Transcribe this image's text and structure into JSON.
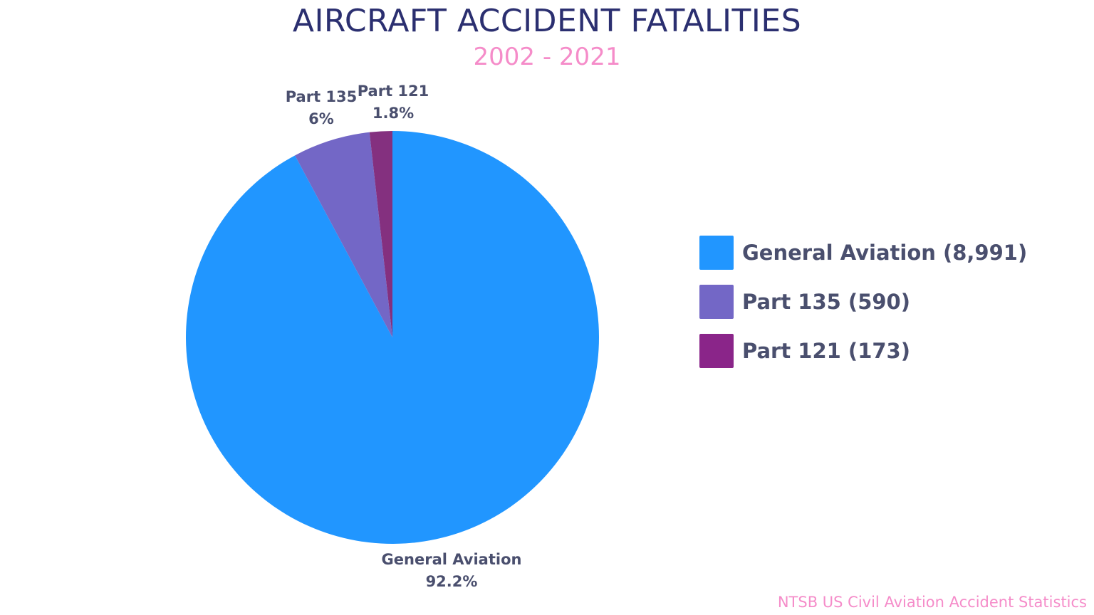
{
  "chart_data": {
    "type": "pie",
    "title": "AIRCRAFT ACCIDENT FATALITIES",
    "subtitle": "2002 - 2021",
    "start_angle": "top",
    "direction": "clockwise",
    "legend_placement": "right",
    "series": [
      {
        "name": "General Aviation",
        "value": 8991,
        "percent_label": "92.2%",
        "legend_label": "General Aviation (8,991)",
        "color": "#2196FF"
      },
      {
        "name": "Part 135",
        "value": 590,
        "percent_label": "6%",
        "legend_label": "Part 135 (590)",
        "color": "#7367C6"
      },
      {
        "name": "Part 121",
        "value": 173,
        "percent_label": "1.8%",
        "legend_label": "Part 121 (173)",
        "color": "#84307F"
      }
    ],
    "source": "NTSB US Civil Aviation Accident Statistics"
  }
}
